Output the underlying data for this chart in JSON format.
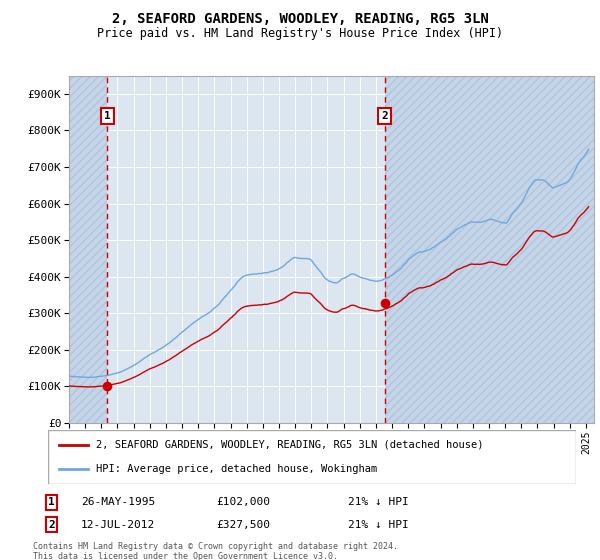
{
  "title_line1": "2, SEAFORD GARDENS, WOODLEY, READING, RG5 3LN",
  "title_line2": "Price paid vs. HM Land Registry's House Price Index (HPI)",
  "ylim": [
    0,
    950000
  ],
  "yticks": [
    0,
    100000,
    200000,
    300000,
    400000,
    500000,
    600000,
    700000,
    800000,
    900000
  ],
  "ytick_labels": [
    "£0",
    "£100K",
    "£200K",
    "£300K",
    "£400K",
    "£500K",
    "£600K",
    "£700K",
    "£800K",
    "£900K"
  ],
  "hpi_color": "#6fa8dc",
  "price_color": "#cc0000",
  "background_color": "#dce6f1",
  "hatch_bg_color": "#c5d5e8",
  "grid_color": "#ffffff",
  "legend_label_price": "2, SEAFORD GARDENS, WOODLEY, READING, RG5 3LN (detached house)",
  "legend_label_hpi": "HPI: Average price, detached house, Wokingham",
  "annotation1_date": "26-MAY-1995",
  "annotation1_price": "£102,000",
  "annotation1_pct": "21% ↓ HPI",
  "annotation2_date": "12-JUL-2012",
  "annotation2_price": "£327,500",
  "annotation2_pct": "21% ↓ HPI",
  "purchase1_year": 1995.38,
  "purchase1_price": 102000,
  "purchase2_year": 2012.54,
  "purchase2_price": 327500,
  "footnote": "Contains HM Land Registry data © Crown copyright and database right 2024.\nThis data is licensed under the Open Government Licence v3.0.",
  "xmin": 1993.0,
  "xmax": 2025.5
}
